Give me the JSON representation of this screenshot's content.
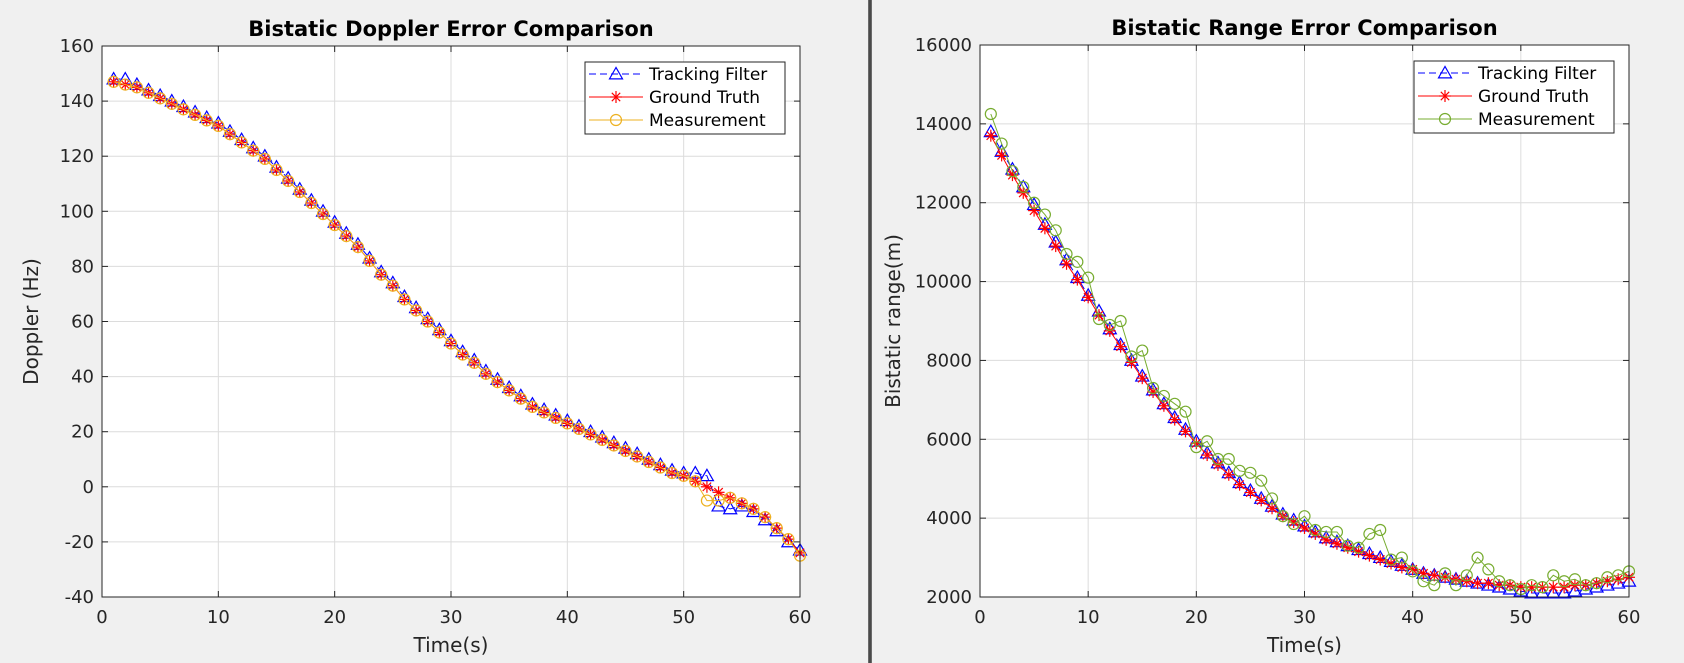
{
  "figure_background": "#f0f0f0",
  "colors": {
    "tracking_filter": "#0000ff",
    "ground_truth": "#ff0000",
    "measurement_left": "#edb120",
    "measurement_right": "#77ac30",
    "grid": "#dcdcdc",
    "axes_background": "#ffffff"
  },
  "chart_data": [
    {
      "type": "line",
      "title": "Bistatic Doppler Error Comparison",
      "xlabel": "Time(s)",
      "ylabel": "Doppler (Hz)",
      "xlim": [
        0,
        60
      ],
      "ylim": [
        -40,
        160
      ],
      "xticks": [
        0,
        10,
        20,
        30,
        40,
        50,
        60
      ],
      "yticks": [
        -40,
        -20,
        0,
        20,
        40,
        60,
        80,
        100,
        120,
        140,
        160
      ],
      "grid": true,
      "legend_position": "top-right",
      "x": [
        1,
        2,
        3,
        4,
        5,
        6,
        7,
        8,
        9,
        10,
        11,
        12,
        13,
        14,
        15,
        16,
        17,
        18,
        19,
        20,
        21,
        22,
        23,
        24,
        25,
        26,
        27,
        28,
        29,
        30,
        31,
        32,
        33,
        34,
        35,
        36,
        37,
        38,
        39,
        40,
        41,
        42,
        43,
        44,
        45,
        46,
        47,
        48,
        49,
        50,
        51,
        52,
        53,
        54,
        55,
        56,
        57,
        58,
        59,
        60
      ],
      "series": [
        {
          "name": "Tracking Filter",
          "color": "#0000ff",
          "marker": "triangle",
          "line": "dashed",
          "values": [
            148,
            148,
            146,
            144,
            142,
            140,
            138,
            136,
            134,
            132,
            129,
            126,
            123,
            120,
            116,
            112,
            108,
            104,
            100,
            96,
            92,
            88,
            83,
            78,
            74,
            69,
            65,
            61,
            57,
            53,
            49,
            46,
            42,
            39,
            36,
            33,
            30,
            28,
            26,
            24,
            22,
            20,
            18,
            16,
            14,
            12,
            10,
            8,
            6,
            5,
            5,
            4,
            -7,
            -8,
            -7,
            -9,
            -12,
            -16,
            -20,
            -23
          ]
        },
        {
          "name": "Ground Truth",
          "color": "#ff0000",
          "marker": "asterisk",
          "line": "solid",
          "values": [
            147,
            146,
            145,
            143,
            141,
            139,
            137,
            135,
            133,
            131,
            128,
            125,
            122,
            119,
            115,
            111,
            107,
            103,
            99,
            95,
            91,
            87,
            82,
            77,
            73,
            68,
            64,
            60,
            56,
            52,
            48,
            45,
            41,
            38,
            35,
            32,
            29,
            27,
            25,
            23,
            21,
            19,
            17,
            15,
            13,
            11,
            9,
            7,
            5,
            4,
            2,
            0,
            -2,
            -4,
            -6,
            -8,
            -11,
            -15,
            -19,
            -24
          ]
        },
        {
          "name": "Measurement",
          "color": "#edb120",
          "marker": "circle",
          "line": "solid",
          "values": [
            147,
            146,
            145,
            143,
            141,
            139,
            137,
            135,
            133,
            131,
            128,
            125,
            122,
            119,
            115,
            111,
            107,
            103,
            99,
            95,
            91,
            87,
            82,
            77,
            73,
            68,
            64,
            60,
            56,
            52,
            48,
            45,
            41,
            38,
            35,
            32,
            29,
            27,
            25,
            23,
            21,
            19,
            17,
            15,
            13,
            11,
            9,
            7,
            5,
            4,
            2,
            -5,
            -5,
            -4,
            -6,
            -8,
            -11,
            -15,
            -19,
            -25
          ]
        }
      ]
    },
    {
      "type": "line",
      "title": "Bistatic Range Error Comparison",
      "xlabel": "Time(s)",
      "ylabel": "Bistatic range(m)",
      "xlim": [
        0,
        60
      ],
      "ylim": [
        2000,
        16000
      ],
      "xticks": [
        0,
        10,
        20,
        30,
        40,
        50,
        60
      ],
      "yticks": [
        2000,
        4000,
        6000,
        8000,
        10000,
        12000,
        14000,
        16000
      ],
      "grid": true,
      "legend_position": "top-right",
      "x": [
        1,
        2,
        3,
        4,
        5,
        6,
        7,
        8,
        9,
        10,
        11,
        12,
        13,
        14,
        15,
        16,
        17,
        18,
        19,
        20,
        21,
        22,
        23,
        24,
        25,
        26,
        27,
        28,
        29,
        30,
        31,
        32,
        33,
        34,
        35,
        36,
        37,
        38,
        39,
        40,
        41,
        42,
        43,
        44,
        45,
        46,
        47,
        48,
        49,
        50,
        51,
        52,
        53,
        54,
        55,
        56,
        57,
        58,
        59,
        60
      ],
      "series": [
        {
          "name": "Tracking Filter",
          "color": "#0000ff",
          "marker": "triangle",
          "line": "dashed",
          "values": [
            13800,
            13300,
            12850,
            12400,
            11950,
            11450,
            11000,
            10550,
            10100,
            9650,
            9250,
            8800,
            8400,
            8000,
            7600,
            7250,
            6900,
            6550,
            6250,
            5950,
            5650,
            5400,
            5150,
            4900,
            4700,
            4500,
            4300,
            4100,
            3950,
            3800,
            3650,
            3500,
            3400,
            3300,
            3200,
            3100,
            3000,
            2900,
            2800,
            2700,
            2600,
            2550,
            2500,
            2450,
            2400,
            2350,
            2300,
            2250,
            2200,
            2150,
            2100,
            2100,
            2100,
            2100,
            2150,
            2200,
            2250,
            2300,
            2350,
            2400
          ]
        },
        {
          "name": "Ground Truth",
          "color": "#ff0000",
          "marker": "asterisk",
          "line": "solid",
          "values": [
            13700,
            13200,
            12700,
            12250,
            11800,
            11350,
            10900,
            10450,
            10050,
            9600,
            9150,
            8750,
            8350,
            7950,
            7550,
            7200,
            6850,
            6500,
            6200,
            5900,
            5600,
            5350,
            5100,
            4850,
            4650,
            4450,
            4250,
            4050,
            3900,
            3750,
            3600,
            3450,
            3350,
            3250,
            3150,
            3050,
            2950,
            2850,
            2750,
            2700,
            2600,
            2550,
            2500,
            2450,
            2400,
            2350,
            2350,
            2300,
            2300,
            2250,
            2250,
            2250,
            2250,
            2250,
            2300,
            2300,
            2350,
            2400,
            2450,
            2500
          ]
        },
        {
          "name": "Measurement",
          "color": "#77ac30",
          "marker": "circle",
          "line": "solid",
          "values": [
            14250,
            13500,
            12800,
            12400,
            12000,
            11700,
            11300,
            10700,
            10500,
            10100,
            9050,
            8900,
            9000,
            8100,
            8250,
            7300,
            7100,
            6900,
            6700,
            5800,
            5950,
            5500,
            5500,
            5200,
            5150,
            4950,
            4500,
            4050,
            3850,
            4050,
            3700,
            3650,
            3650,
            3300,
            3250,
            3600,
            3700,
            2950,
            3000,
            2650,
            2400,
            2300,
            2600,
            2300,
            2550,
            3000,
            2700,
            2400,
            2300,
            2200,
            2300,
            2250,
            2550,
            2400,
            2450,
            2300,
            2350,
            2500,
            2550,
            2650
          ]
        }
      ]
    }
  ]
}
